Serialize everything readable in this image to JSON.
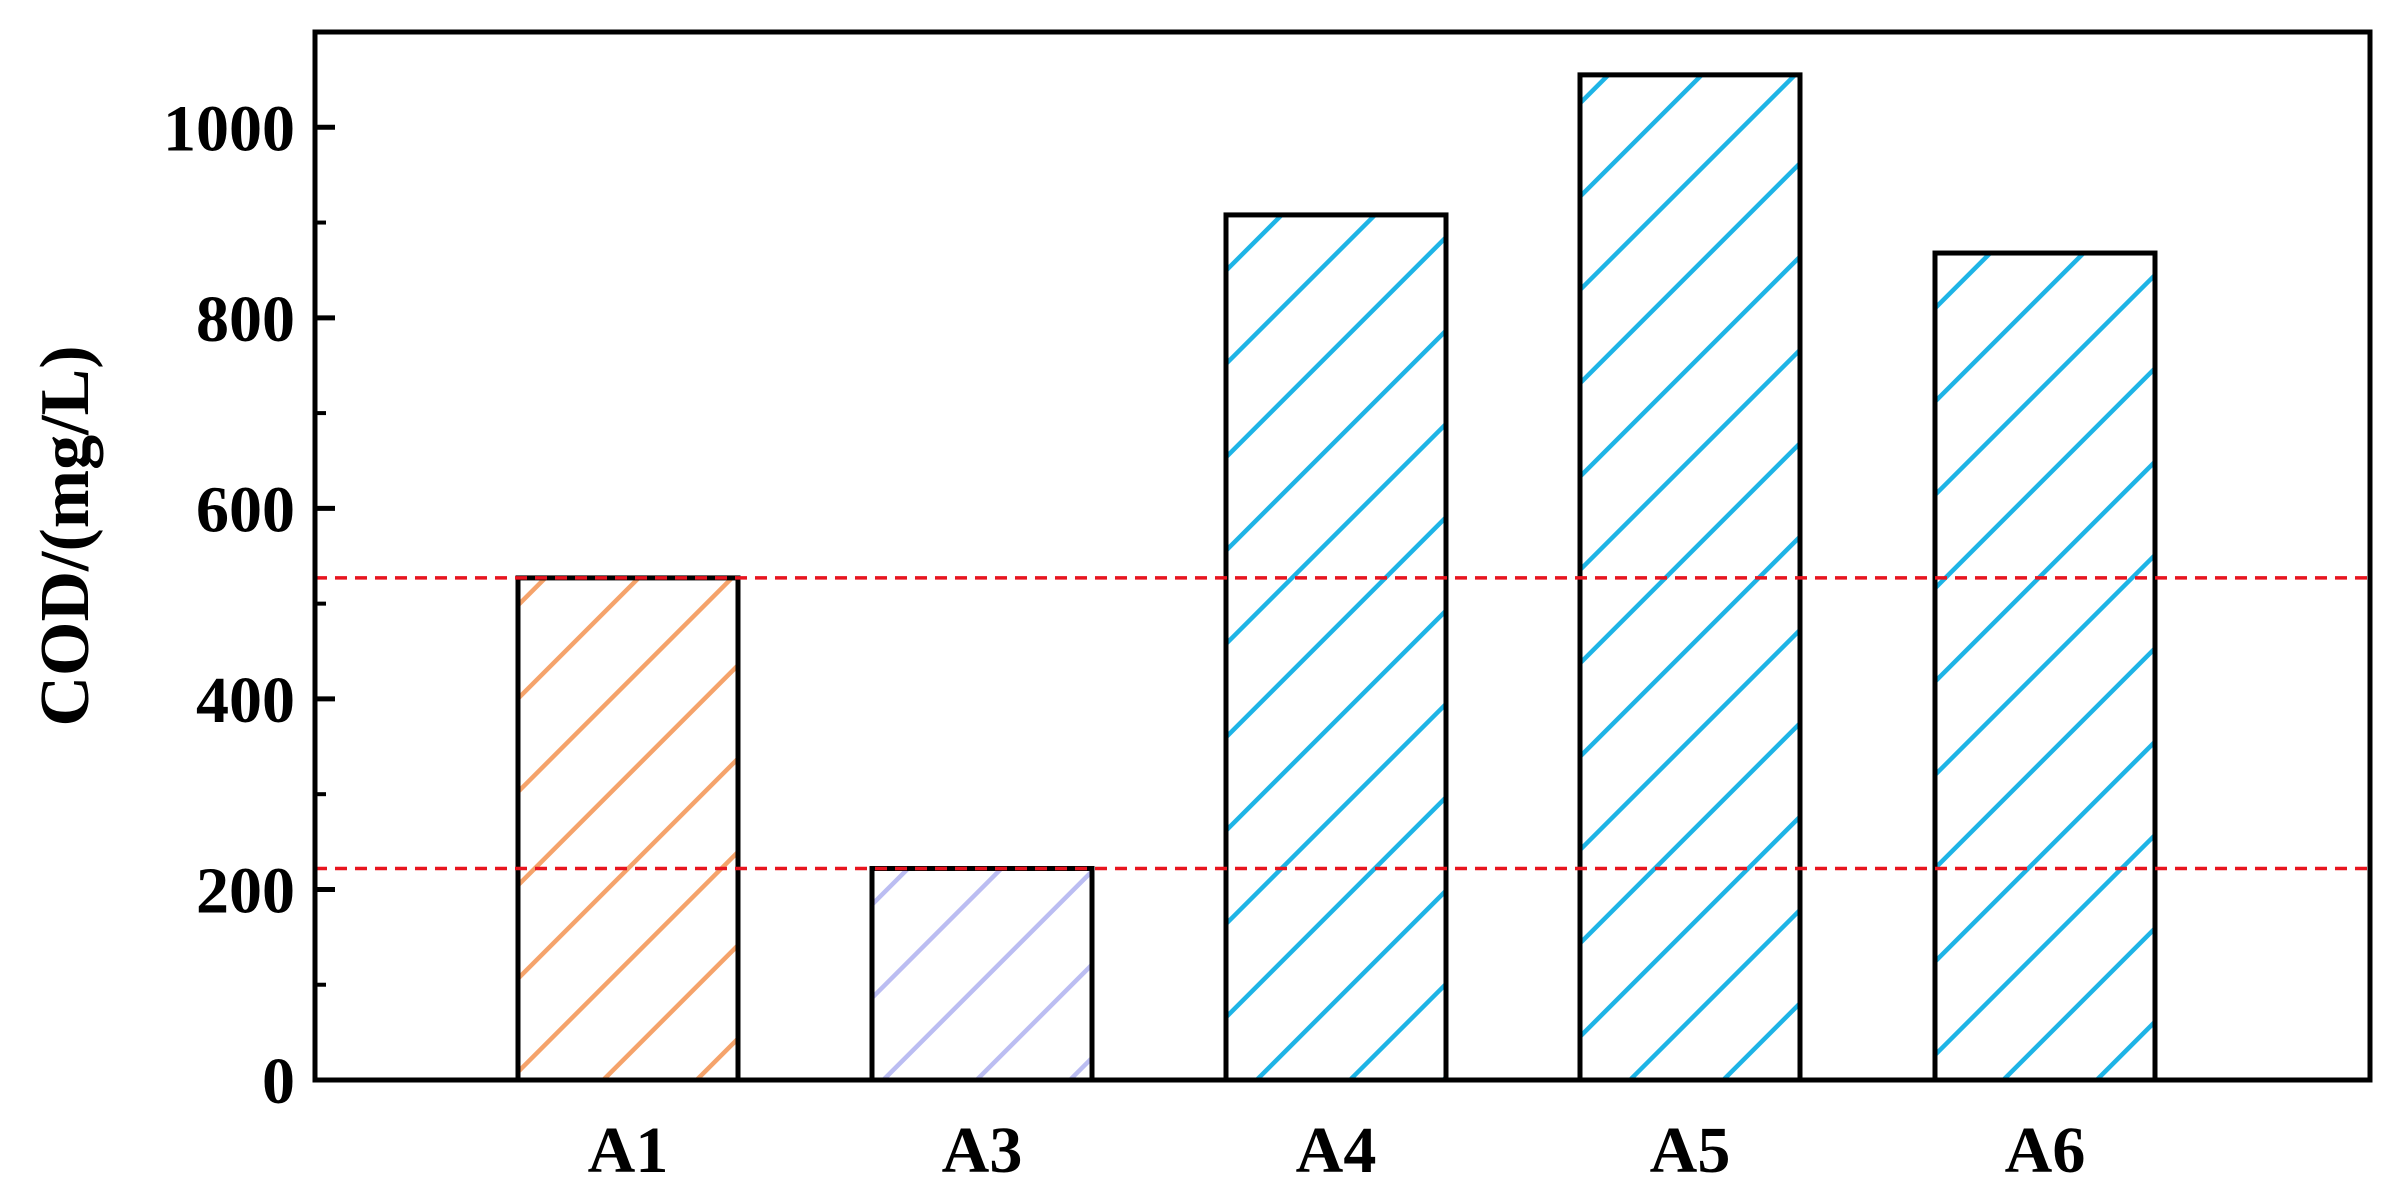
{
  "chart_data": {
    "type": "bar",
    "title": "",
    "xlabel": "",
    "ylabel": "COD/(mg/L)",
    "ylim": [
      0,
      1100
    ],
    "yticks": [
      0,
      200,
      400,
      600,
      800,
      1000
    ],
    "ytick_labels": [
      "0",
      "200",
      "400",
      "600",
      "800",
      "1000"
    ],
    "minor_ticks": true,
    "grid": false,
    "legend": "none",
    "bar_fill": "hatched",
    "categories": [
      "A1",
      "A3",
      "A4",
      "A5",
      "A6"
    ],
    "values": [
      527,
      222,
      908,
      1055,
      868
    ],
    "colors": [
      "#F5A36B",
      "#BBBDF2",
      "#1EB4E6",
      "#1EB4E6",
      "#1EB4E6"
    ],
    "reference_lines": [
      {
        "value": 527,
        "color": "#E8141E",
        "style": "dashed"
      },
      {
        "value": 222,
        "color": "#E8141E",
        "style": "dashed"
      }
    ]
  }
}
